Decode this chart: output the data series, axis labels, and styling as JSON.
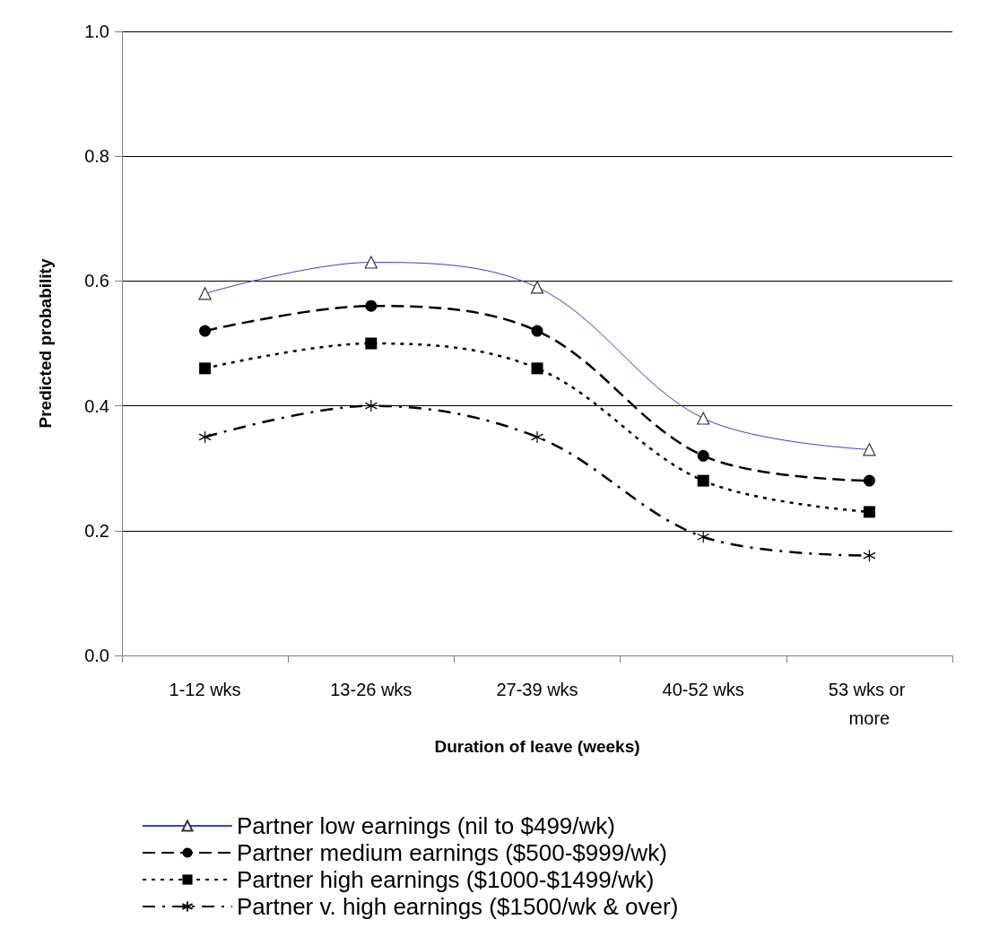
{
  "chart_data": {
    "type": "line",
    "xlabel": "Duration of leave (weeks)",
    "ylabel": "Predicted probability",
    "categories": [
      "1-12 wks",
      "13-26 wks",
      "27-39 wks",
      "40-52 wks",
      "53 wks or more"
    ],
    "ylim": [
      0,
      1
    ],
    "yticks": [
      {
        "value": 0,
        "label": "0.0"
      },
      {
        "value": 0.2,
        "label": "0.2"
      },
      {
        "value": 0.4,
        "label": "0.4"
      },
      {
        "value": 0.6,
        "label": "0.6"
      },
      {
        "value": 0.8,
        "label": "0.8"
      },
      {
        "value": 1,
        "label": "1.0"
      }
    ],
    "grid": "y",
    "legend": "bottom",
    "series": [
      {
        "name": "Partner low earnings (nil to $499/wk)",
        "color": "#3344bb",
        "marker": "triangle",
        "line_style": "solid",
        "values": [
          0.58,
          0.63,
          0.59,
          0.38,
          0.33
        ]
      },
      {
        "name": "Partner medium earnings ($500-$999/wk)",
        "color": "#000000",
        "marker": "circle",
        "line_style": "dashed",
        "values": [
          0.52,
          0.56,
          0.52,
          0.32,
          0.28
        ]
      },
      {
        "name": "Partner high earnings ($1000-$1499/wk)",
        "color": "#000000",
        "marker": "square",
        "line_style": "dotted",
        "values": [
          0.46,
          0.5,
          0.46,
          0.28,
          0.23
        ]
      },
      {
        "name": "Partner v. high earnings ($1500/wk & over)",
        "color": "#000000",
        "marker": "cross",
        "line_style": "dashdot",
        "values": [
          0.35,
          0.4,
          0.35,
          0.19,
          0.16
        ]
      }
    ]
  }
}
